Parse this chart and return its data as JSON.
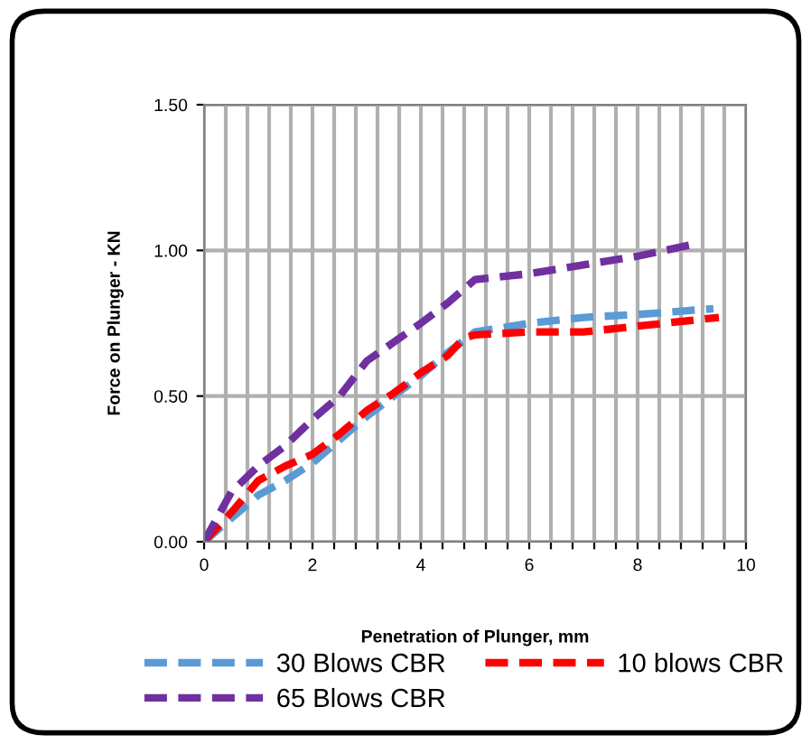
{
  "chart_data": {
    "type": "line",
    "xlabel": "Penetration of Plunger, mm",
    "ylabel": "Force on Plunger - KN",
    "xlim": [
      0,
      10
    ],
    "ylim": [
      0,
      1.5
    ],
    "xticks": [
      0,
      {
        "value": 0.4,
        "label": null
      },
      {
        "value": 0.8,
        "label": null
      },
      {
        "value": 1.2,
        "label": null
      },
      {
        "value": 1.6,
        "label": null
      },
      2,
      {
        "value": 2.4,
        "label": null
      },
      {
        "value": 2.8,
        "label": null
      },
      {
        "value": 3.2,
        "label": null
      },
      {
        "value": 3.6,
        "label": null
      },
      4,
      {
        "value": 4.4,
        "label": null
      },
      {
        "value": 4.8,
        "label": null
      },
      {
        "value": 5.2,
        "label": null
      },
      {
        "value": 5.6,
        "label": null
      },
      6,
      {
        "value": 6.4,
        "label": null
      },
      {
        "value": 6.8,
        "label": null
      },
      {
        "value": 7.2,
        "label": null
      },
      {
        "value": 7.6,
        "label": null
      },
      8,
      {
        "value": 8.4,
        "label": null
      },
      {
        "value": 8.8,
        "label": null
      },
      {
        "value": 9.2,
        "label": null
      },
      {
        "value": 9.6,
        "label": null
      },
      10
    ],
    "yticks": [
      {
        "value": 0,
        "label": "0.00"
      },
      {
        "value": 0.5,
        "label": "0.50"
      },
      {
        "value": 1.0,
        "label": "1.00"
      },
      {
        "value": 1.5,
        "label": "1.50"
      }
    ],
    "grid": true,
    "legend": "bottom",
    "line_style": "dashed",
    "marker": "none",
    "series": [
      {
        "name": "30 Blows CBR",
        "color": "#5b9bd5",
        "x": [
          0,
          0.5,
          1,
          1.5,
          2,
          2.5,
          3,
          3.5,
          4,
          4.5,
          5,
          6,
          7,
          8,
          9.4
        ],
        "values": [
          0,
          0.08,
          0.16,
          0.21,
          0.27,
          0.35,
          0.43,
          0.5,
          0.57,
          0.65,
          0.72,
          0.75,
          0.77,
          0.78,
          0.8
        ]
      },
      {
        "name": "10 blows CBR",
        "color": "#ff0000",
        "x": [
          0,
          0.5,
          1,
          1.5,
          2,
          2.5,
          3,
          3.5,
          4,
          4.5,
          4.8,
          5,
          6,
          7,
          8,
          9.5
        ],
        "values": [
          0,
          0.1,
          0.21,
          0.26,
          0.3,
          0.37,
          0.45,
          0.51,
          0.58,
          0.64,
          0.7,
          0.71,
          0.72,
          0.72,
          0.74,
          0.77
        ]
      },
      {
        "name": "65 Blows CBR",
        "color": "#7030a0",
        "x": [
          0,
          0.5,
          1,
          1.5,
          2,
          2.5,
          3,
          4,
          4.5,
          5,
          6,
          7,
          8,
          9
        ],
        "values": [
          0,
          0.17,
          0.26,
          0.33,
          0.42,
          0.5,
          0.62,
          0.75,
          0.82,
          0.9,
          0.92,
          0.95,
          0.98,
          1.02
        ]
      }
    ]
  }
}
